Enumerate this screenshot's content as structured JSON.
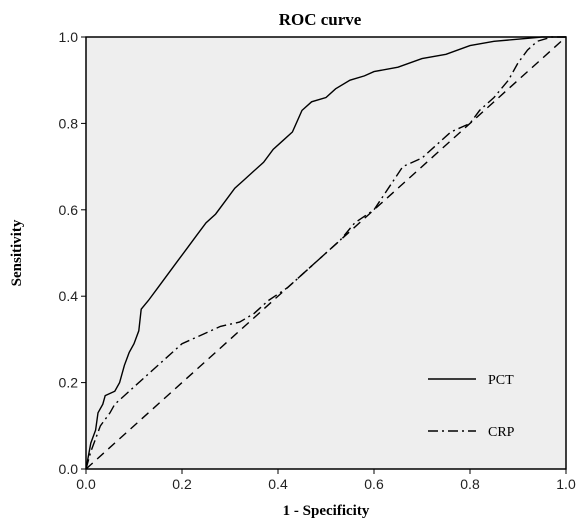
{
  "chart_data": {
    "type": "line",
    "title": "ROC curve",
    "xlabel": "1 - Specificity",
    "ylabel": "Sensitivity",
    "xlim": [
      0,
      1
    ],
    "ylim": [
      0,
      1
    ],
    "xticks": [
      "0.0",
      "0.2",
      "0.4",
      "0.6",
      "0.8",
      "1.0"
    ],
    "yticks": [
      "0.0",
      "0.2",
      "0.4",
      "0.6",
      "0.8",
      "1.0"
    ],
    "grid": false,
    "legend_position": "bottom-right",
    "background": "#eeeeee",
    "series": [
      {
        "name": "PCT",
        "line_style": "solid",
        "color": "#000000",
        "points": [
          [
            0.0,
            0.0
          ],
          [
            0.005,
            0.03
          ],
          [
            0.01,
            0.06
          ],
          [
            0.02,
            0.09
          ],
          [
            0.025,
            0.13
          ],
          [
            0.035,
            0.15
          ],
          [
            0.04,
            0.17
          ],
          [
            0.06,
            0.18
          ],
          [
            0.07,
            0.2
          ],
          [
            0.08,
            0.24
          ],
          [
            0.09,
            0.27
          ],
          [
            0.1,
            0.29
          ],
          [
            0.11,
            0.32
          ],
          [
            0.115,
            0.37
          ],
          [
            0.13,
            0.39
          ],
          [
            0.15,
            0.42
          ],
          [
            0.17,
            0.45
          ],
          [
            0.19,
            0.48
          ],
          [
            0.21,
            0.51
          ],
          [
            0.23,
            0.54
          ],
          [
            0.25,
            0.57
          ],
          [
            0.27,
            0.59
          ],
          [
            0.29,
            0.62
          ],
          [
            0.31,
            0.65
          ],
          [
            0.33,
            0.67
          ],
          [
            0.35,
            0.69
          ],
          [
            0.37,
            0.71
          ],
          [
            0.39,
            0.74
          ],
          [
            0.41,
            0.76
          ],
          [
            0.43,
            0.78
          ],
          [
            0.45,
            0.83
          ],
          [
            0.47,
            0.85
          ],
          [
            0.5,
            0.86
          ],
          [
            0.52,
            0.88
          ],
          [
            0.55,
            0.9
          ],
          [
            0.58,
            0.91
          ],
          [
            0.6,
            0.92
          ],
          [
            0.65,
            0.93
          ],
          [
            0.7,
            0.95
          ],
          [
            0.75,
            0.96
          ],
          [
            0.8,
            0.98
          ],
          [
            0.85,
            0.99
          ],
          [
            0.9,
            0.995
          ],
          [
            0.95,
            1.0
          ],
          [
            1.0,
            1.0
          ]
        ]
      },
      {
        "name": "CRP",
        "line_style": "dash-dot",
        "color": "#000000",
        "points": [
          [
            0.0,
            0.0
          ],
          [
            0.01,
            0.04
          ],
          [
            0.02,
            0.07
          ],
          [
            0.03,
            0.1
          ],
          [
            0.05,
            0.13
          ],
          [
            0.06,
            0.15
          ],
          [
            0.08,
            0.17
          ],
          [
            0.1,
            0.19
          ],
          [
            0.12,
            0.21
          ],
          [
            0.14,
            0.23
          ],
          [
            0.16,
            0.25
          ],
          [
            0.18,
            0.27
          ],
          [
            0.2,
            0.29
          ],
          [
            0.22,
            0.3
          ],
          [
            0.24,
            0.31
          ],
          [
            0.28,
            0.33
          ],
          [
            0.32,
            0.34
          ],
          [
            0.35,
            0.36
          ],
          [
            0.38,
            0.39
          ],
          [
            0.42,
            0.42
          ],
          [
            0.46,
            0.46
          ],
          [
            0.5,
            0.5
          ],
          [
            0.53,
            0.53
          ],
          [
            0.56,
            0.57
          ],
          [
            0.6,
            0.6
          ],
          [
            0.63,
            0.65
          ],
          [
            0.66,
            0.7
          ],
          [
            0.7,
            0.72
          ],
          [
            0.73,
            0.75
          ],
          [
            0.76,
            0.78
          ],
          [
            0.8,
            0.8
          ],
          [
            0.82,
            0.83
          ],
          [
            0.85,
            0.86
          ],
          [
            0.88,
            0.9
          ],
          [
            0.9,
            0.94
          ],
          [
            0.92,
            0.97
          ],
          [
            0.94,
            0.99
          ],
          [
            0.97,
            1.0
          ],
          [
            1.0,
            1.0
          ]
        ]
      },
      {
        "name": "",
        "line_style": "dashed",
        "color": "#000000",
        "points": [
          [
            0.0,
            0.0
          ],
          [
            1.0,
            1.0
          ]
        ]
      }
    ]
  }
}
